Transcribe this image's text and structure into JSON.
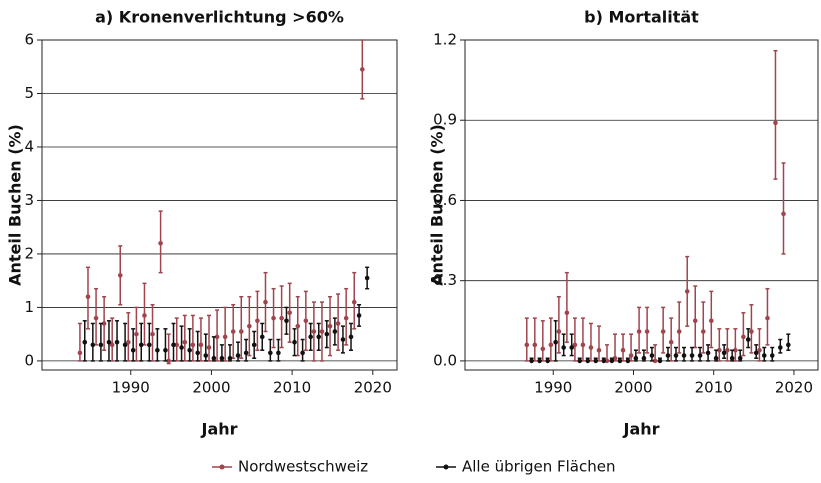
{
  "chart_data": [
    {
      "type": "errorbar",
      "title": "a) Kronenverlichtung >60%",
      "x_label": "Jahr",
      "y_label": "Anteil Buchen (%)",
      "xlim": [
        1979,
        2023
      ],
      "xticks": [
        1990,
        2000,
        2010,
        2020
      ],
      "ylim": [
        -0.17,
        6
      ],
      "yticks": [
        0,
        1,
        2,
        3,
        4,
        5,
        6
      ],
      "grid": true,
      "x": [
        1984,
        1985,
        1986,
        1987,
        1988,
        1989,
        1990,
        1991,
        1992,
        1993,
        1994,
        1995,
        1996,
        1997,
        1998,
        1999,
        2000,
        2001,
        2002,
        2003,
        2004,
        2005,
        2006,
        2007,
        2008,
        2009,
        2010,
        2011,
        2012,
        2013,
        2014,
        2015,
        2016,
        2017,
        2018,
        2019
      ],
      "series": [
        {
          "name": "Nordwestschweiz",
          "color": "#a0454d",
          "values": [
            0.15,
            1.2,
            0.8,
            0.7,
            0.3,
            1.6,
            0.35,
            0.5,
            0.85,
            0.5,
            2.2,
            0.0,
            0.3,
            0.35,
            0.3,
            0.3,
            0.25,
            0.45,
            0.45,
            0.55,
            0.55,
            0.65,
            0.75,
            1.1,
            0.8,
            0.8,
            0.9,
            0.65,
            0.75,
            0.55,
            0.55,
            0.65,
            0.7,
            0.8,
            1.1,
            5.45
          ],
          "lower": [
            0,
            0.6,
            0.3,
            0.2,
            0,
            1.05,
            0,
            0,
            0.3,
            0,
            1.65,
            -0.05,
            0,
            0,
            0,
            0,
            0,
            0,
            0,
            0.05,
            0.05,
            0.1,
            0.2,
            0.55,
            0.25,
            0.25,
            0.35,
            0.1,
            0.2,
            0,
            0,
            0.1,
            0.2,
            0.3,
            0.6,
            4.9
          ],
          "upper": [
            0.7,
            1.75,
            1.35,
            1.2,
            0.8,
            2.15,
            0.9,
            1.0,
            1.45,
            1.05,
            2.8,
            0.5,
            0.8,
            0.85,
            0.85,
            0.8,
            0.85,
            0.95,
            1.0,
            1.05,
            1.2,
            1.2,
            1.3,
            1.65,
            1.35,
            1.4,
            1.45,
            1.2,
            1.3,
            1.1,
            1.1,
            1.2,
            1.25,
            1.35,
            1.65,
            6.0
          ]
        },
        {
          "name": "Alle übrigen Flächen",
          "color": "#111111",
          "values": [
            0.35,
            0.3,
            0.3,
            0.35,
            0.35,
            0.3,
            0.2,
            0.3,
            0.3,
            0.2,
            0.2,
            0.3,
            0.25,
            0.2,
            0.15,
            0.1,
            0.05,
            0.05,
            0.05,
            0.1,
            0.15,
            0.3,
            0.45,
            0.15,
            0.15,
            0.75,
            0.35,
            0.15,
            0.45,
            0.45,
            0.5,
            0.55,
            0.4,
            0.45,
            0.85,
            1.55
          ],
          "lower": [
            0,
            0,
            0,
            0,
            0,
            0,
            0,
            0,
            0,
            0,
            0,
            0,
            0,
            0,
            0,
            0,
            0,
            0,
            0,
            0,
            0,
            0.05,
            0.2,
            0,
            0,
            0.5,
            0.1,
            0,
            0.2,
            0.2,
            0.25,
            0.3,
            0.15,
            0.2,
            0.65,
            1.35
          ],
          "upper": [
            0.75,
            0.7,
            0.7,
            0.75,
            0.75,
            0.7,
            0.6,
            0.7,
            0.7,
            0.6,
            0.6,
            0.7,
            0.65,
            0.6,
            0.55,
            0.5,
            0.45,
            0.3,
            0.3,
            0.35,
            0.4,
            0.55,
            0.7,
            0.4,
            0.4,
            1.0,
            0.6,
            0.4,
            0.7,
            0.7,
            0.75,
            0.8,
            0.65,
            0.7,
            1.05,
            1.75
          ]
        }
      ]
    },
    {
      "type": "errorbar",
      "title": "b) Mortalität",
      "x_label": "Jahr",
      "y_label": "Anteil Buchen (%)",
      "xlim": [
        1979,
        2023
      ],
      "xticks": [
        1990,
        2000,
        2010,
        2020
      ],
      "ylim": [
        -0.034,
        1.2
      ],
      "yticks": [
        {
          "value": 0,
          "label": "0.0"
        },
        {
          "value": 0.3,
          "label": "0.3"
        },
        {
          "value": 0.6,
          "label": "0.6"
        },
        {
          "value": 0.9,
          "label": "0.9"
        },
        {
          "value": 1.2,
          "label": "1.2"
        }
      ],
      "grid": true,
      "x": [
        1987,
        1988,
        1989,
        1990,
        1991,
        1992,
        1993,
        1994,
        1995,
        1996,
        1997,
        1998,
        1999,
        2000,
        2001,
        2002,
        2003,
        2004,
        2005,
        2006,
        2007,
        2008,
        2009,
        2010,
        2011,
        2012,
        2013,
        2014,
        2015,
        2016,
        2017,
        2018,
        2019
      ],
      "series": [
        {
          "name": "Nordwestschweiz",
          "color": "#a0454d",
          "values": [
            0.06,
            0.06,
            0.045,
            0.06,
            0.11,
            0.18,
            0.06,
            0.06,
            0.05,
            0.04,
            0.0,
            0.01,
            0.04,
            0.02,
            0.11,
            0.11,
            0.0,
            0.11,
            0.07,
            0.11,
            0.26,
            0.15,
            0.11,
            0.15,
            0.04,
            0.04,
            0.04,
            0.09,
            0.11,
            0.04,
            0.16,
            0.89,
            0.55
          ],
          "lower": [
            0,
            0,
            0,
            0,
            0.03,
            0.07,
            0,
            0,
            0,
            0,
            0,
            0,
            0,
            0,
            0.03,
            0.03,
            0,
            0.03,
            0,
            0.03,
            0.13,
            0.05,
            0.03,
            0.05,
            0,
            0,
            0,
            0.02,
            0.03,
            0,
            0.06,
            0.68,
            0.4
          ],
          "upper": [
            0.16,
            0.16,
            0.15,
            0.16,
            0.24,
            0.33,
            0.16,
            0.16,
            0.14,
            0.13,
            0.06,
            0.1,
            0.1,
            0.1,
            0.2,
            0.2,
            0.06,
            0.2,
            0.16,
            0.22,
            0.39,
            0.28,
            0.22,
            0.26,
            0.12,
            0.12,
            0.12,
            0.18,
            0.21,
            0.12,
            0.27,
            1.16,
            0.74
          ]
        },
        {
          "name": "Alle übrigen Flächen",
          "color": "#111111",
          "values": [
            0,
            0,
            0,
            0.07,
            0.05,
            0.05,
            0,
            0,
            0,
            0,
            0,
            0,
            0,
            0.01,
            0.01,
            0.02,
            0,
            0.02,
            0.02,
            0.02,
            0.02,
            0.02,
            0.03,
            0.01,
            0.03,
            0.01,
            0.01,
            0.08,
            0.03,
            0.02,
            0.02,
            0.05,
            0.06
          ],
          "lower": [
            0,
            0,
            0,
            0,
            0.02,
            0.02,
            0,
            0,
            0,
            0,
            0,
            0,
            0,
            0,
            0,
            0,
            0,
            0,
            0,
            0,
            0,
            0,
            0,
            0,
            0.01,
            0,
            0,
            0.05,
            0.01,
            0,
            0,
            0.03,
            0.04
          ],
          "upper": [
            0.01,
            0.01,
            0.01,
            0.15,
            0.1,
            0.1,
            0.01,
            0.01,
            0.01,
            0.01,
            0.01,
            0.01,
            0.01,
            0.04,
            0.04,
            0.05,
            0.01,
            0.05,
            0.05,
            0.05,
            0.05,
            0.05,
            0.06,
            0.04,
            0.06,
            0.04,
            0.04,
            0.12,
            0.06,
            0.05,
            0.05,
            0.08,
            0.1
          ]
        }
      ]
    }
  ]
}
